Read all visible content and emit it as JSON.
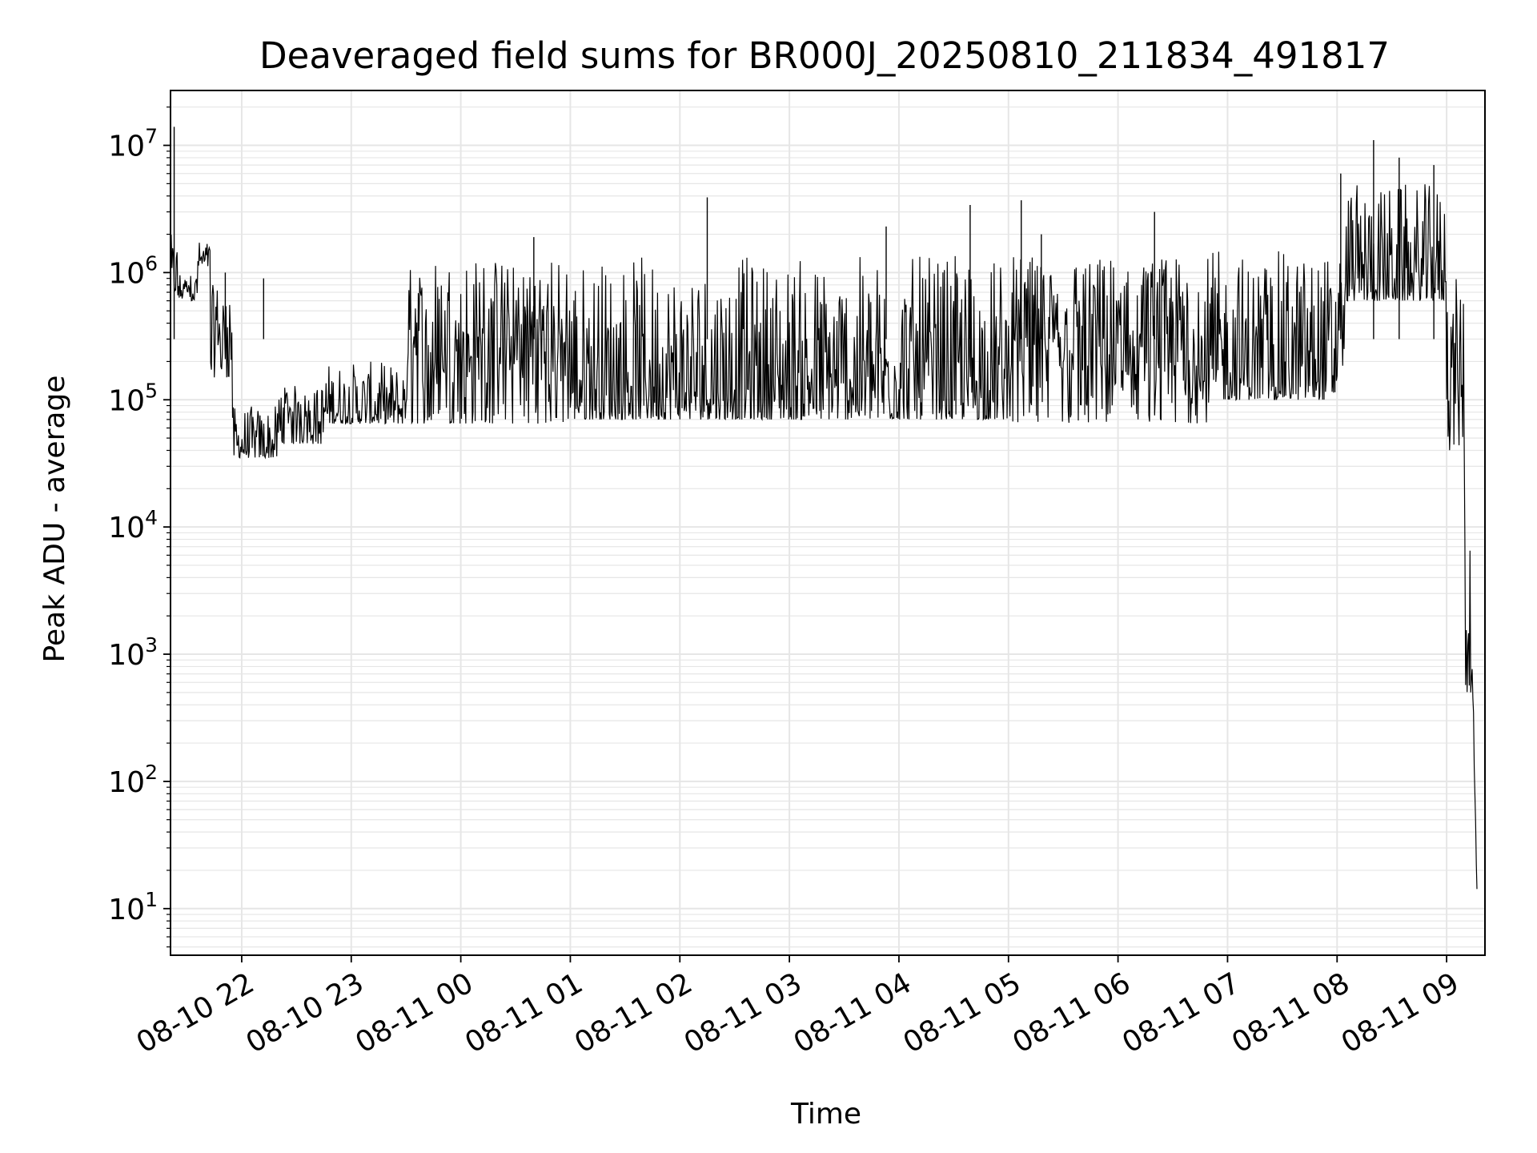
{
  "chart_data": {
    "type": "line",
    "title": "Deaveraged field sums for BR000J_20250810_211834_491817",
    "xlabel": "Time",
    "ylabel": "Peak ADU - average",
    "yscale": "log",
    "ylim": [
      4.3,
      27000000
    ],
    "xlim": [
      "2025-08-10 21:21",
      "2025-08-11 09:21"
    ],
    "grid": true,
    "line_color": "#000000",
    "grid_color": "#e6e6e6",
    "x_ticks": [
      {
        "t": "2025-08-10 22:00",
        "label": "08-10 22"
      },
      {
        "t": "2025-08-10 23:00",
        "label": "08-10 23"
      },
      {
        "t": "2025-08-11 00:00",
        "label": "08-11 00"
      },
      {
        "t": "2025-08-11 01:00",
        "label": "08-11 01"
      },
      {
        "t": "2025-08-11 02:00",
        "label": "08-11 02"
      },
      {
        "t": "2025-08-11 03:00",
        "label": "08-11 03"
      },
      {
        "t": "2025-08-11 04:00",
        "label": "08-11 04"
      },
      {
        "t": "2025-08-11 05:00",
        "label": "08-11 05"
      },
      {
        "t": "2025-08-11 06:00",
        "label": "08-11 06"
      },
      {
        "t": "2025-08-11 07:00",
        "label": "08-11 07"
      },
      {
        "t": "2025-08-11 08:00",
        "label": "08-11 08"
      },
      {
        "t": "2025-08-11 09:00",
        "label": "08-11 09"
      }
    ],
    "y_ticks": [
      {
        "value": 10,
        "base": "10",
        "exp": "1"
      },
      {
        "value": 100,
        "base": "10",
        "exp": "2"
      },
      {
        "value": 1000,
        "base": "10",
        "exp": "3"
      },
      {
        "value": 10000,
        "base": "10",
        "exp": "4"
      },
      {
        "value": 100000,
        "base": "10",
        "exp": "5"
      },
      {
        "value": 1000000,
        "base": "10",
        "exp": "6"
      },
      {
        "value": 10000000,
        "base": "10",
        "exp": "7"
      }
    ],
    "series": [
      {
        "segments": [
          {
            "start": "2025-08-10 21:21",
            "end": "2025-08-10 21:25",
            "low": 700000,
            "high": 2000000
          },
          {
            "start": "2025-08-10 21:25",
            "end": "2025-08-10 21:36",
            "low": 600000,
            "high": 1000000
          },
          {
            "start": "2025-08-10 21:36",
            "end": "2025-08-10 21:43",
            "low": 1100000,
            "high": 1800000
          },
          {
            "start": "2025-08-10 21:43",
            "end": "2025-08-10 21:55",
            "low": 150000,
            "high": 800000
          },
          {
            "start": "2025-08-10 21:55",
            "end": "2025-08-10 22:20",
            "low": 35000,
            "high": 90000
          },
          {
            "start": "2025-08-10 22:20",
            "end": "2025-08-10 22:45",
            "low": 45000,
            "high": 130000
          },
          {
            "start": "2025-08-10 22:45",
            "end": "2025-08-10 23:30",
            "low": 65000,
            "high": 200000
          },
          {
            "start": "2025-08-10 23:30",
            "end": "2025-08-11 01:00",
            "low": 65000,
            "high": 1300000
          },
          {
            "start": "2025-08-11 01:00",
            "end": "2025-08-11 05:00",
            "low": 70000,
            "high": 1350000
          },
          {
            "start": "2025-08-11 05:00",
            "end": "2025-08-11 06:50",
            "low": 65000,
            "high": 1350000
          },
          {
            "start": "2025-08-11 06:50",
            "end": "2025-08-11 08:00",
            "low": 100000,
            "high": 1500000
          },
          {
            "start": "2025-08-11 08:00",
            "end": "2025-08-11 08:05",
            "low": 150000,
            "high": 1400000
          },
          {
            "start": "2025-08-11 08:05",
            "end": "2025-08-11 09:00",
            "low": 600000,
            "high": 5000000
          },
          {
            "start": "2025-08-11 09:00",
            "end": "2025-08-11 09:10",
            "low": 40000,
            "high": 900000
          },
          {
            "start": "2025-08-11 09:10",
            "end": "2025-08-11 09:14",
            "low": 500,
            "high": 40000
          },
          {
            "start": "2025-08-11 09:14",
            "end": "2025-08-11 09:17",
            "low": 4.3,
            "high": 500
          }
        ],
        "spikes": [
          {
            "t": "2025-08-10 21:23",
            "value": 14000000
          },
          {
            "t": "2025-08-10 21:51",
            "value": 1000000
          },
          {
            "t": "2025-08-10 22:12",
            "value": 900000
          },
          {
            "t": "2025-08-11 00:40",
            "value": 1900000
          },
          {
            "t": "2025-08-11 02:15",
            "value": 3900000
          },
          {
            "t": "2025-08-11 03:53",
            "value": 2300000
          },
          {
            "t": "2025-08-11 04:39",
            "value": 3400000
          },
          {
            "t": "2025-08-11 05:07",
            "value": 3700000
          },
          {
            "t": "2025-08-11 05:18",
            "value": 2000000
          },
          {
            "t": "2025-08-11 06:20",
            "value": 3000000
          },
          {
            "t": "2025-08-11 08:02",
            "value": 6000000
          },
          {
            "t": "2025-08-11 08:20",
            "value": 11000000
          },
          {
            "t": "2025-08-11 08:34",
            "value": 8000000
          },
          {
            "t": "2025-08-11 08:53",
            "value": 7000000
          }
        ]
      }
    ]
  }
}
